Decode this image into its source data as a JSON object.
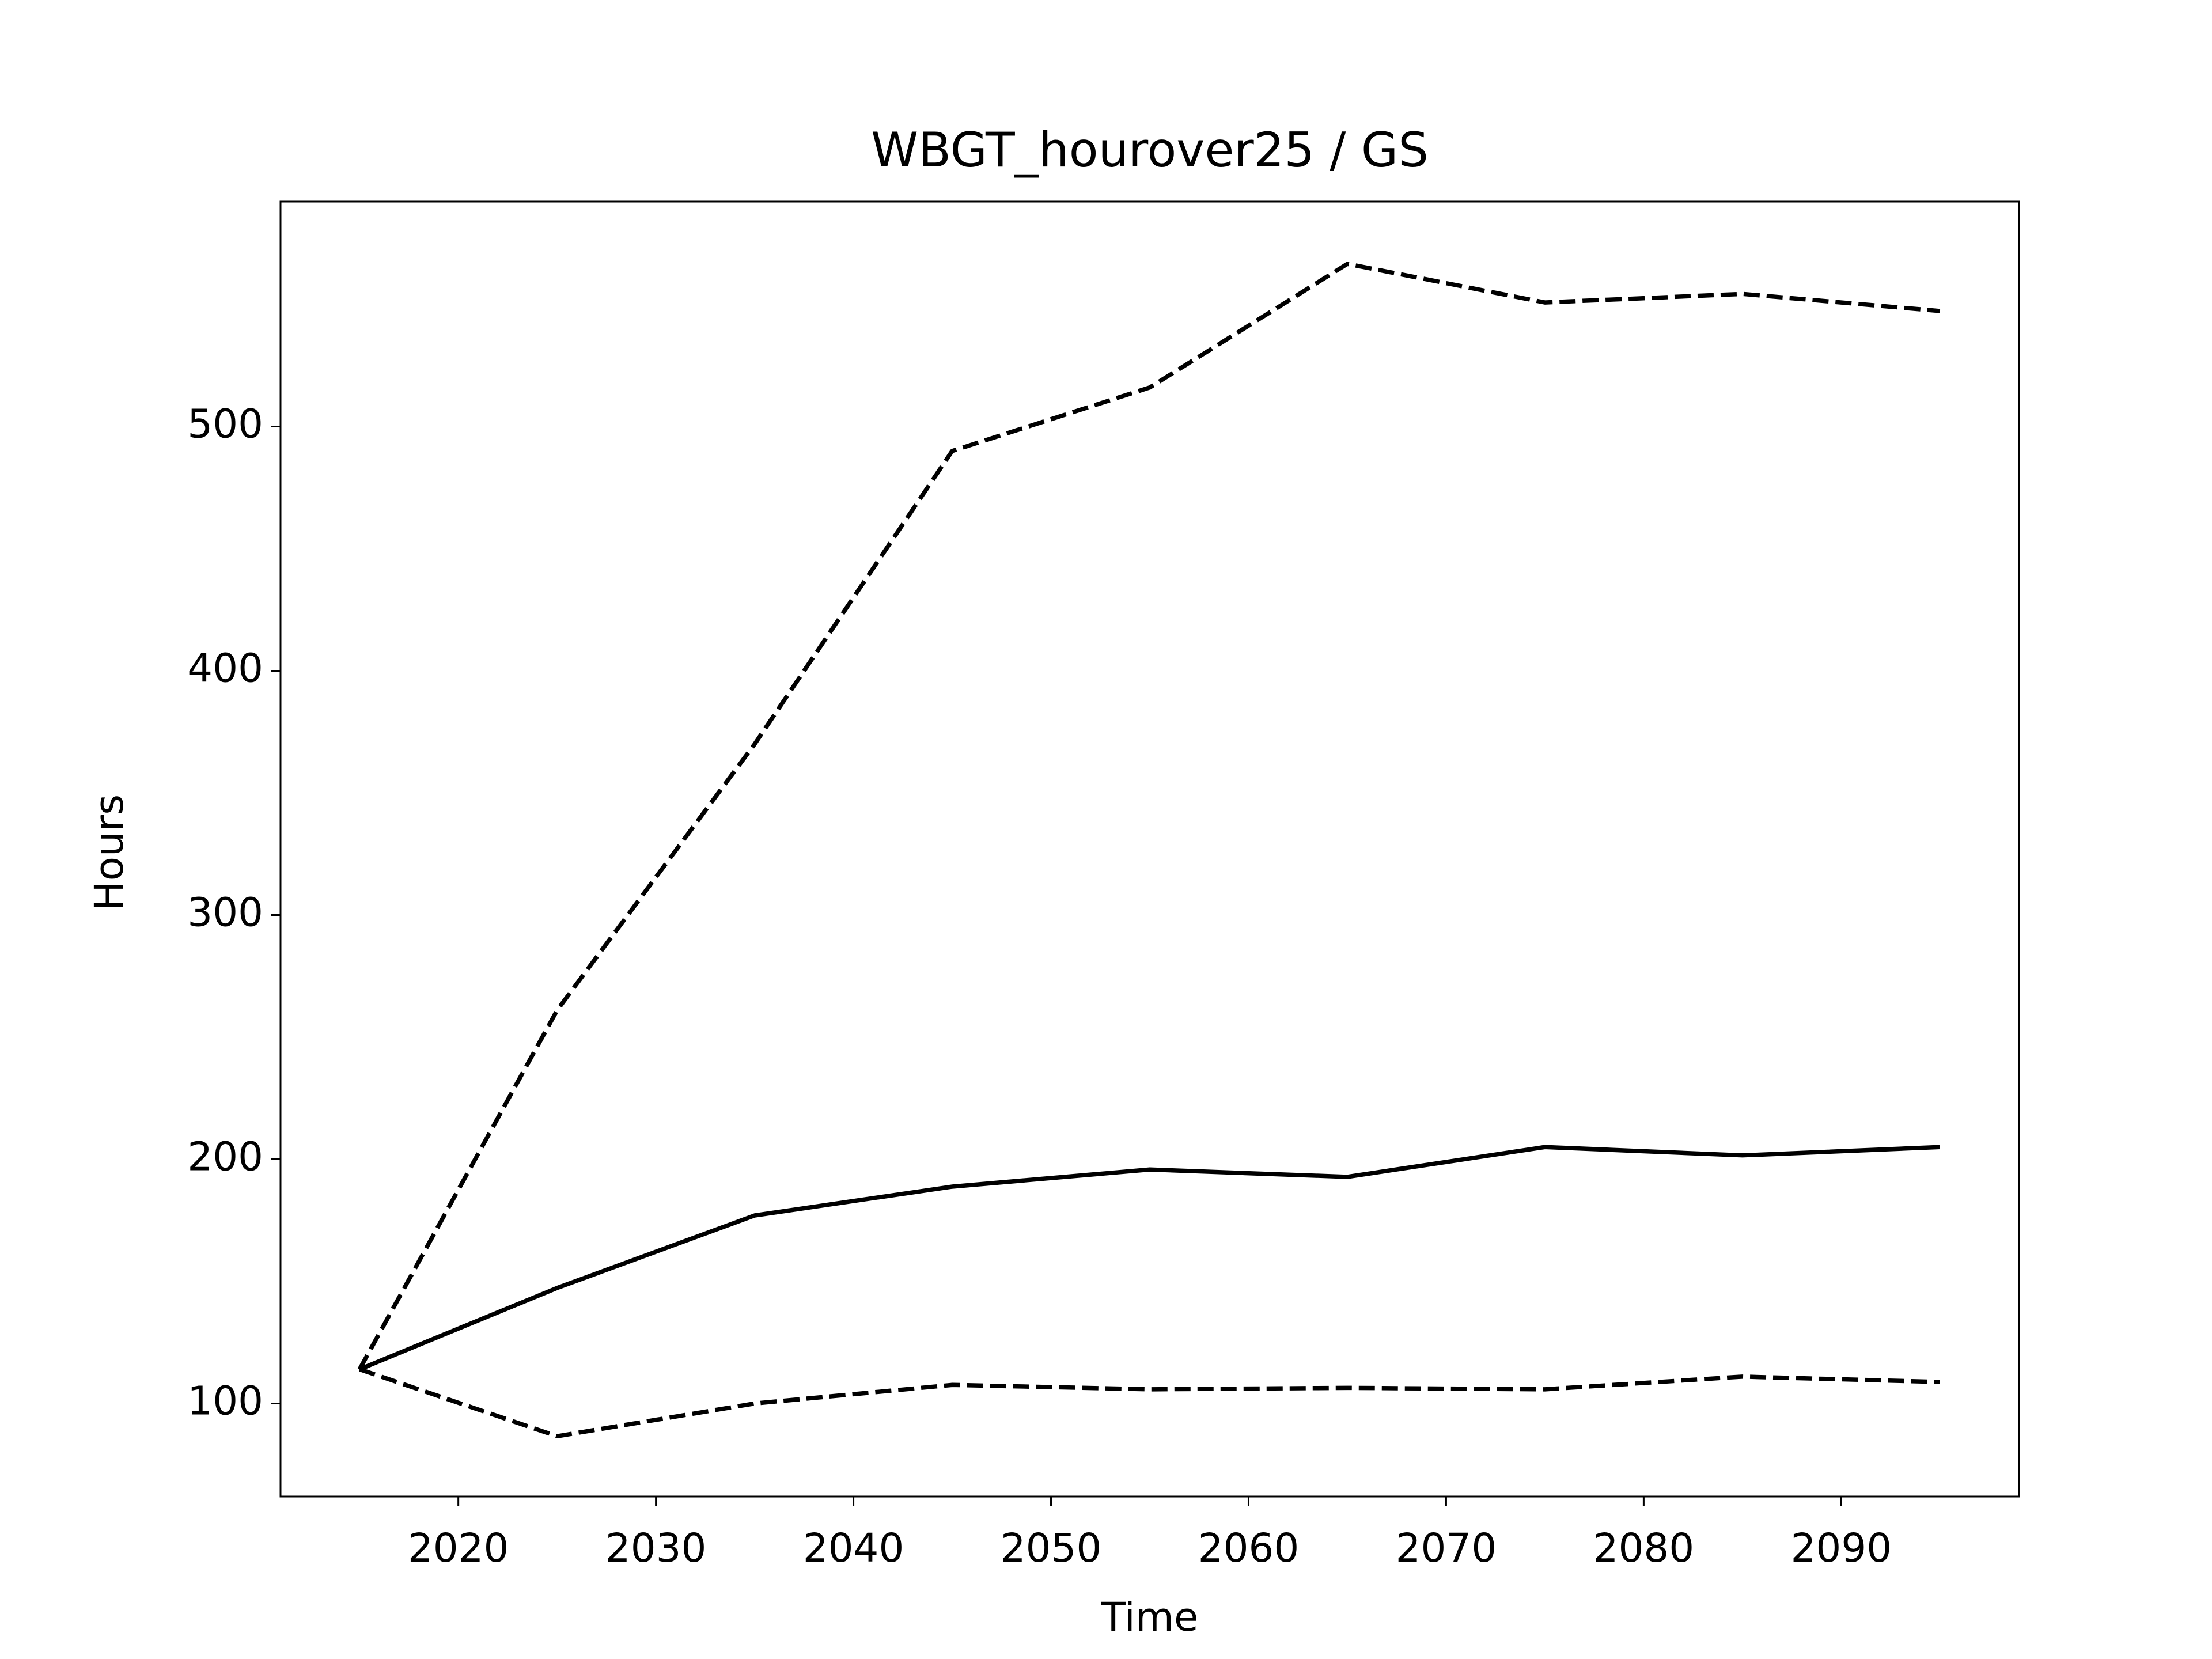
{
  "chart_data": {
    "type": "line",
    "title": "WBGT_hourover25 / GS",
    "xlabel": "Time",
    "ylabel": "Hours",
    "x": [
      2015,
      2025,
      2035,
      2045,
      2055,
      2065,
      2075,
      2085,
      2095
    ],
    "series": [
      {
        "color": "#000000",
        "linestyle": "dashed",
        "values": [
          114,
          261,
          370,
          490,
          516,
          566.6,
          550.8,
          554.3,
          547.3
        ]
      },
      {
        "color": "#000000",
        "linestyle": "solid",
        "values": [
          114,
          147.3,
          177,
          188.8,
          195.8,
          192.8,
          205,
          201.6,
          205
        ]
      },
      {
        "color": "#000000",
        "linestyle": "dashed",
        "values": [
          114,
          86.6,
          100,
          107.6,
          105.8,
          106.4,
          105.8,
          111,
          108.8
        ]
      }
    ],
    "xlim": [
      2011,
      2099
    ],
    "ylim": [
      61.9,
      592.1
    ],
    "xticks": [
      2020,
      2030,
      2040,
      2050,
      2060,
      2070,
      2080,
      2090
    ],
    "yticks": [
      100,
      200,
      300,
      400,
      500
    ],
    "grid": false
  }
}
